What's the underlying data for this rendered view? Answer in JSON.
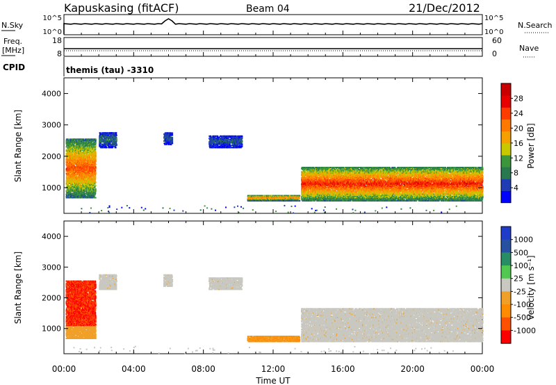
{
  "header": {
    "site": "Kapuskasing (fitACF)",
    "beam": "Beam 04",
    "date": "21/Dec/2012"
  },
  "strip_nsky": {
    "left_label": "N.Sky",
    "right_label": "N.Search",
    "left_ticks": [
      "10^5",
      "10^0"
    ],
    "right_ticks": [
      "10^5",
      "10^0"
    ]
  },
  "strip_freq": {
    "left_label_1": "Freq.",
    "left_label_2": "[MHz]",
    "right_label": "Nave",
    "left_ticks": [
      "18",
      "8"
    ],
    "right_ticks": [
      "60",
      "0"
    ]
  },
  "cpid": {
    "label": "CPID",
    "program": "themis (tau) -3310"
  },
  "x_axis": {
    "label": "Time UT",
    "ticks": [
      "00:00",
      "04:00",
      "08:00",
      "12:00",
      "16:00",
      "20:00",
      "00:00"
    ],
    "range_hours": [
      0,
      24
    ]
  },
  "power_panel": {
    "ylabel": "Slant Range [km]",
    "yticks": [
      "1000",
      "2000",
      "3000",
      "4000"
    ],
    "ylim": [
      180,
      4500
    ],
    "colorbar_label": "Power [dB]",
    "colorbar_ticks": [
      "4",
      "8",
      "12",
      "16",
      "20",
      "24",
      "28"
    ],
    "colors": [
      "#0000ff",
      "#1f3cb4",
      "#287850",
      "#3c963c",
      "#c8c800",
      "#f5a000",
      "#ff7800",
      "#ff3c00",
      "#e60000",
      "#c80000"
    ]
  },
  "velocity_panel": {
    "ylabel": "Slant Range [km]",
    "yticks": [
      "1000",
      "2000",
      "3000",
      "4000"
    ],
    "ylim": [
      180,
      4500
    ],
    "colorbar_label": "Velocity [m s⁻¹]",
    "colorbar_ticks": [
      "1000",
      "500",
      "100",
      "25",
      "-25",
      "-100",
      "-500",
      "-1000"
    ],
    "colors": [
      "#1e3cc8",
      "#2850a0",
      "#288c64",
      "#50c850",
      "#c8c8c0",
      "#f0a028",
      "#ff8c00",
      "#ff5000",
      "#ff0000"
    ]
  },
  "chart_data": {
    "type": "heatmap",
    "title": "Kapuskasing (fitACF)",
    "xlabel": "Time UT",
    "ylabel": "Slant Range [km]",
    "xlim_hours": [
      0,
      24
    ],
    "ylim_km": [
      180,
      4500
    ],
    "scatter_regions": [
      {
        "t_start": 0.1,
        "t_end": 1.8,
        "r_min": 700,
        "r_max": 2600,
        "power_db": 18,
        "velocity": -450
      },
      {
        "t_start": 2.0,
        "t_end": 3.0,
        "r_min": 2300,
        "r_max": 2800,
        "power_db": 6,
        "velocity": 25
      },
      {
        "t_start": 5.7,
        "t_end": 6.2,
        "r_min": 2400,
        "r_max": 2800,
        "power_db": 5,
        "velocity": 25
      },
      {
        "t_start": 8.3,
        "t_end": 10.2,
        "r_min": 2300,
        "r_max": 2700,
        "power_db": 5,
        "velocity": 25
      },
      {
        "t_start": 10.5,
        "t_end": 13.5,
        "r_min": 600,
        "r_max": 800,
        "power_db": 15,
        "velocity": -120
      },
      {
        "t_start": 13.6,
        "t_end": 24.0,
        "r_min": 600,
        "r_max": 1700,
        "power_db": 20,
        "velocity": 10
      }
    ]
  }
}
